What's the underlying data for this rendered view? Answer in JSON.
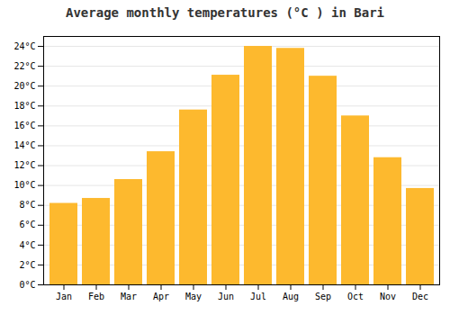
{
  "chart_data": {
    "type": "bar",
    "title": "Average monthly temperatures (°C ) in Bari",
    "categories": [
      "Jan",
      "Feb",
      "Mar",
      "Apr",
      "May",
      "Jun",
      "Jul",
      "Aug",
      "Sep",
      "Oct",
      "Nov",
      "Dec"
    ],
    "values": [
      8.2,
      8.7,
      10.6,
      13.4,
      17.6,
      21.1,
      24.0,
      23.8,
      21.0,
      17.0,
      12.8,
      9.7
    ],
    "color": "#FDB92E",
    "ylim": [
      0,
      25
    ],
    "yticks": [
      {
        "value": 0,
        "label": "0°C"
      },
      {
        "value": 2,
        "label": "2°C"
      },
      {
        "value": 4,
        "label": "4°C"
      },
      {
        "value": 6,
        "label": "6°C"
      },
      {
        "value": 8,
        "label": "8°C"
      },
      {
        "value": 10,
        "label": "10°C"
      },
      {
        "value": 12,
        "label": "12°C"
      },
      {
        "value": 14,
        "label": "14°C"
      },
      {
        "value": 16,
        "label": "16°C"
      },
      {
        "value": 18,
        "label": "18°C"
      },
      {
        "value": 20,
        "label": "20°C"
      },
      {
        "value": 22,
        "label": "22°C"
      },
      {
        "value": 24,
        "label": "24°C"
      }
    ],
    "grid": true
  }
}
